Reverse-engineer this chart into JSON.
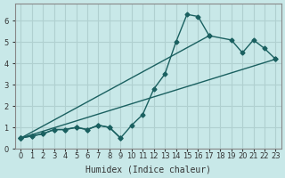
{
  "xlabel": "Humidex (Indice chaleur)",
  "background_color": "#c8e8e8",
  "grid_color": "#b0d0d0",
  "line_color": "#1a6060",
  "x_values": [
    0,
    1,
    2,
    3,
    4,
    5,
    6,
    7,
    8,
    9,
    10,
    11,
    12,
    13,
    14,
    15,
    16,
    17,
    18,
    19,
    20,
    21,
    22,
    23
  ],
  "line1": [
    0.5,
    0.6,
    0.7,
    0.9,
    0.9,
    1.0,
    0.9,
    1.1,
    1.0,
    0.5,
    1.1,
    1.6,
    2.8,
    3.5,
    5.0,
    6.3,
    6.2,
    5.3,
    null,
    null,
    null,
    null,
    null,
    null
  ],
  "line2": [
    0.5,
    0.6,
    0.7,
    0.9,
    0.9,
    1.0,
    0.9,
    1.1,
    1.0,
    0.5,
    null,
    null,
    null,
    null,
    null,
    null,
    null,
    null,
    null,
    null,
    null,
    null,
    null,
    null
  ],
  "line3_x": [
    0,
    23
  ],
  "line3_y": [
    0.5,
    4.2
  ],
  "line4_x": [
    0,
    17,
    19,
    20,
    21,
    22,
    23
  ],
  "line4_y": [
    0.5,
    5.3,
    5.1,
    4.5,
    5.1,
    4.7,
    4.2
  ],
  "xlim": [
    -0.5,
    23.5
  ],
  "ylim": [
    0,
    6.8
  ],
  "yticks": [
    0,
    1,
    2,
    3,
    4,
    5,
    6
  ],
  "xticks": [
    0,
    1,
    2,
    3,
    4,
    5,
    6,
    7,
    8,
    9,
    10,
    11,
    12,
    13,
    14,
    15,
    16,
    17,
    18,
    19,
    20,
    21,
    22,
    23
  ]
}
